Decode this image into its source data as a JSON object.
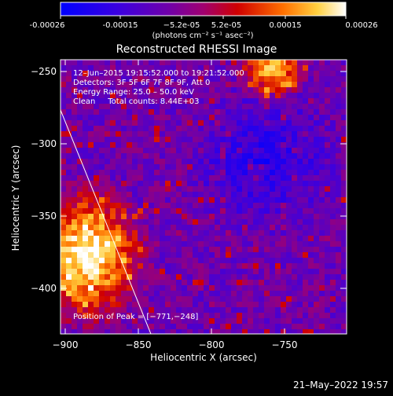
{
  "colorbar": {
    "tick_labels": [
      "-0.00026",
      "-0.00015",
      "−5.2e-05",
      "5.2e-05",
      "0.00015",
      "0.00026"
    ],
    "unit_label": "(photons cm⁻² s⁻¹ asec⁻²)",
    "colors": [
      "#0000ff",
      "#5a00c8",
      "#8a0090",
      "#c80000",
      "#ff8000",
      "#ffff80",
      "#ffffff"
    ]
  },
  "image": {
    "title": "Reconstructed RHESSI Image",
    "info_lines": [
      "12–Jun–2015 19:15:52.000 to 19:21:52.000",
      "Detectors: 3F 5F 6F 7F 8F 9F, Att 0",
      "Energy Range: 25.0 – 50.0 keV",
      "Clean     Total counts: 8.44E+03"
    ],
    "peak_label": "Position of Peak = [−771,−248]"
  },
  "axes": {
    "x_label": "Heliocentric X (arcsec)",
    "y_label": "Heliocentric Y (arcsec)",
    "x_ticks": [
      "−900",
      "−850",
      "−800",
      "−750"
    ],
    "y_ticks": [
      "−250",
      "−300",
      "−350",
      "−400"
    ]
  },
  "footer": {
    "timestamp": "21–May–2022 19:57"
  }
}
